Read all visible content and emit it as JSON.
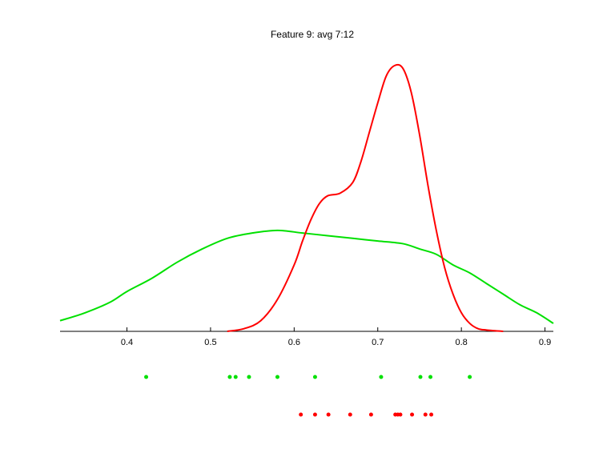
{
  "chart_data": {
    "type": "line",
    "title": "Feature 9: avg 7:12",
    "xlabel": "",
    "ylabel": "",
    "xlim": [
      0.32,
      0.91
    ],
    "x_ticks": [
      0.4,
      0.5,
      0.6,
      0.7,
      0.8,
      0.9
    ],
    "x_tick_labels": [
      "0.4",
      "0.5",
      "0.6",
      "0.7",
      "0.8",
      "0.9"
    ],
    "ylim": [
      0,
      1
    ],
    "y_axis_visible": false,
    "grid": false,
    "series": [
      {
        "color": "#00e000",
        "x": [
          0.32,
          0.35,
          0.38,
          0.4,
          0.43,
          0.46,
          0.49,
          0.52,
          0.55,
          0.58,
          0.61,
          0.64,
          0.67,
          0.7,
          0.73,
          0.75,
          0.77,
          0.79,
          0.81,
          0.83,
          0.85,
          0.87,
          0.89,
          0.91
        ],
        "y": [
          0.04,
          0.07,
          0.11,
          0.15,
          0.2,
          0.26,
          0.31,
          0.35,
          0.37,
          0.38,
          0.37,
          0.36,
          0.35,
          0.34,
          0.33,
          0.31,
          0.29,
          0.25,
          0.22,
          0.18,
          0.14,
          0.1,
          0.07,
          0.03
        ],
        "points": [
          0.423,
          0.523,
          0.53,
          0.546,
          0.58,
          0.625,
          0.704,
          0.751,
          0.763,
          0.81
        ]
      },
      {
        "color": "#ff0000",
        "x": [
          0.52,
          0.54,
          0.56,
          0.58,
          0.6,
          0.61,
          0.62,
          0.63,
          0.64,
          0.655,
          0.67,
          0.68,
          0.69,
          0.7,
          0.71,
          0.72,
          0.73,
          0.74,
          0.75,
          0.76,
          0.77,
          0.78,
          0.79,
          0.8,
          0.81,
          0.82,
          0.83,
          0.85
        ],
        "y": [
          0.0,
          0.01,
          0.04,
          0.12,
          0.25,
          0.34,
          0.42,
          0.48,
          0.51,
          0.52,
          0.56,
          0.64,
          0.75,
          0.86,
          0.96,
          1.0,
          0.99,
          0.9,
          0.74,
          0.55,
          0.38,
          0.24,
          0.14,
          0.07,
          0.03,
          0.01,
          0.005,
          0.0
        ],
        "points": [
          0.608,
          0.625,
          0.641,
          0.667,
          0.692,
          0.721,
          0.724,
          0.727,
          0.741,
          0.757,
          0.764
        ]
      }
    ]
  }
}
